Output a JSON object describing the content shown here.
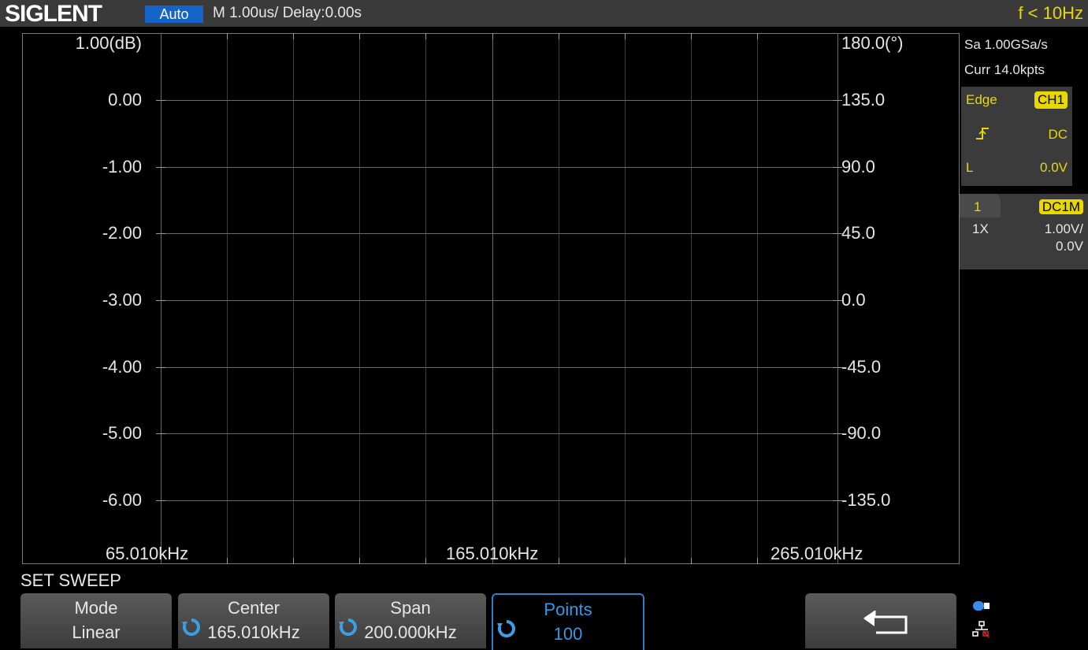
{
  "header": {
    "logo": "SIGLENT",
    "trigger_mode": "Auto",
    "timebase": "M 1.00us/  Delay:0.00s",
    "frequency_indicator": "f < 10Hz"
  },
  "plot": {
    "left_axis_labels": [
      "1.00(dB)",
      "0.00",
      "-1.00",
      "-2.00",
      "-3.00",
      "-4.00",
      "-5.00",
      "-6.00"
    ],
    "right_axis_labels": [
      "180.0(°)",
      "135.0",
      "90.0",
      "45.0",
      "0.0",
      "-45.0",
      "-90.0",
      "-135.0"
    ],
    "x_axis_labels": [
      "65.010kHz",
      "165.010kHz",
      "265.010kHz"
    ]
  },
  "sidebar": {
    "sample_rate": "Sa 1.00GSa/s",
    "memory_depth": "Curr 14.0kpts",
    "trigger": {
      "type": "Edge",
      "source": "CH1",
      "slope_icon": "rising-edge-icon",
      "coupling": "DC",
      "level_label": "L",
      "level": "0.0V"
    },
    "channel": {
      "number": "1",
      "coupling": "DC1M",
      "probe": "1X",
      "scale": "1.00V/",
      "offset": "0.0V"
    }
  },
  "menu": {
    "title": "SET SWEEP",
    "softkeys": [
      {
        "label": "Mode",
        "value": "Linear"
      },
      {
        "label": "Center",
        "value": "165.010kHz"
      },
      {
        "label": "Span",
        "value": "200.000kHz"
      },
      {
        "label": "Points",
        "value": "100"
      }
    ],
    "back_icon": "return-arrow-icon"
  },
  "status": {
    "icons": [
      "usb-storage-icon",
      "network-icon"
    ]
  },
  "colors": {
    "accent_yellow": "#e8d800",
    "accent_blue": "#1463c8",
    "active_softkey": "#2e9be8"
  }
}
